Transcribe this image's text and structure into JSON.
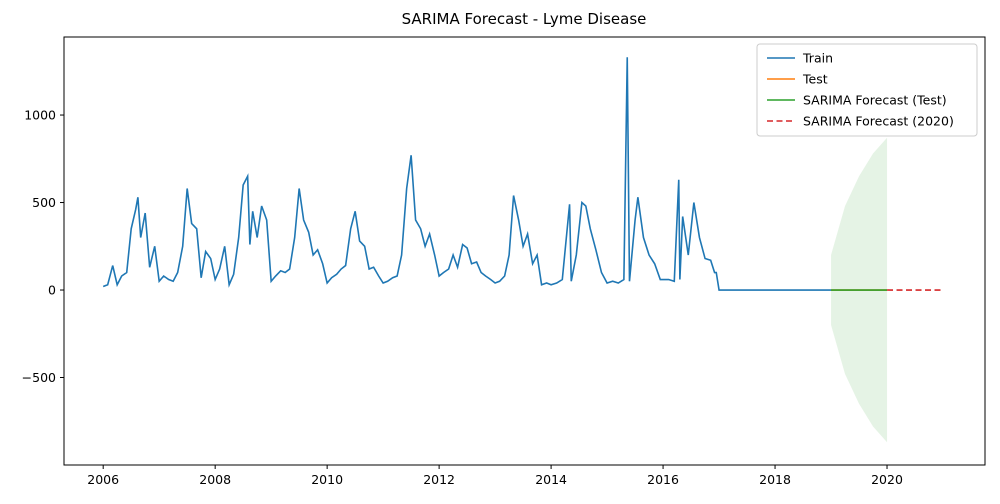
{
  "chart_data": {
    "type": "line",
    "title": "SARIMA Forecast - Lyme Disease",
    "xlim": [
      2005.3,
      2021.75
    ],
    "ylim": [
      -1000,
      1446
    ],
    "xticks": [
      2006,
      2008,
      2010,
      2012,
      2014,
      2016,
      2018,
      2020
    ],
    "yticks": [
      {
        "value": -500,
        "label": "−500"
      },
      0,
      500,
      1000
    ],
    "legend": "upper right",
    "series": [
      {
        "name": "Train",
        "color": "#1f77b4",
        "x": [
          2006.0,
          2006.08,
          2006.17,
          2006.25,
          2006.33,
          2006.42,
          2006.5,
          2006.58,
          2006.62,
          2006.67,
          2006.75,
          2006.83,
          2006.92,
          2007.0,
          2007.08,
          2007.17,
          2007.25,
          2007.33,
          2007.42,
          2007.5,
          2007.58,
          2007.67,
          2007.75,
          2007.83,
          2007.92,
          2008.0,
          2008.08,
          2008.17,
          2008.25,
          2008.33,
          2008.42,
          2008.5,
          2008.58,
          2008.62,
          2008.67,
          2008.75,
          2008.83,
          2008.92,
          2009.0,
          2009.08,
          2009.17,
          2009.25,
          2009.33,
          2009.42,
          2009.5,
          2009.58,
          2009.67,
          2009.75,
          2009.83,
          2009.92,
          2010.0,
          2010.08,
          2010.17,
          2010.25,
          2010.33,
          2010.42,
          2010.5,
          2010.58,
          2010.67,
          2010.75,
          2010.83,
          2010.92,
          2011.0,
          2011.08,
          2011.17,
          2011.25,
          2011.33,
          2011.42,
          2011.5,
          2011.58,
          2011.67,
          2011.75,
          2011.83,
          2011.92,
          2012.0,
          2012.08,
          2012.17,
          2012.25,
          2012.33,
          2012.42,
          2012.5,
          2012.58,
          2012.67,
          2012.75,
          2012.83,
          2012.92,
          2013.0,
          2013.08,
          2013.17,
          2013.25,
          2013.33,
          2013.42,
          2013.5,
          2013.58,
          2013.67,
          2013.75,
          2013.83,
          2013.92,
          2014.0,
          2014.1,
          2014.2,
          2014.33,
          2014.36,
          2014.45,
          2014.55,
          2014.62,
          2014.7,
          2014.8,
          2014.9,
          2015.0,
          2015.1,
          2015.2,
          2015.3,
          2015.36,
          2015.4,
          2015.5,
          2015.55,
          2015.65,
          2015.75,
          2015.85,
          2015.95,
          2016.0,
          2016.1,
          2016.2,
          2016.28,
          2016.3,
          2016.35,
          2016.45,
          2016.55,
          2016.65,
          2016.75,
          2016.85,
          2016.92,
          2016.95,
          2017.0,
          2019.0
        ],
        "values": [
          20,
          30,
          140,
          30,
          80,
          100,
          350,
          460,
          530,
          300,
          440,
          130,
          250,
          50,
          80,
          60,
          50,
          100,
          250,
          580,
          380,
          350,
          70,
          220,
          180,
          60,
          120,
          250,
          30,
          90,
          300,
          600,
          650,
          260,
          450,
          300,
          480,
          400,
          50,
          80,
          110,
          100,
          120,
          300,
          580,
          400,
          330,
          200,
          230,
          150,
          40,
          70,
          90,
          120,
          140,
          350,
          450,
          280,
          250,
          120,
          130,
          80,
          40,
          50,
          70,
          80,
          200,
          580,
          770,
          400,
          350,
          250,
          320,
          200,
          80,
          100,
          120,
          200,
          130,
          260,
          240,
          150,
          160,
          100,
          80,
          60,
          40,
          50,
          80,
          200,
          540,
          400,
          250,
          320,
          150,
          200,
          30,
          40,
          30,
          40,
          60,
          490,
          50,
          200,
          500,
          480,
          350,
          230,
          100,
          40,
          50,
          40,
          60,
          1330,
          50,
          400,
          530,
          300,
          200,
          150,
          60,
          60,
          60,
          50,
          630,
          60,
          420,
          200,
          500,
          300,
          180,
          170,
          100,
          100,
          0,
          0
        ]
      },
      {
        "name": "Test",
        "color": "#ff7f0e",
        "x": [
          2019,
          2020
        ],
        "values": [
          0,
          0
        ]
      },
      {
        "name": "SARIMA Forecast (Test)",
        "color": "#2ca02c",
        "x": [
          2019,
          2020
        ],
        "values": [
          0,
          0
        ]
      },
      {
        "name": "SARIMA Forecast (2020)",
        "color": "#d62728",
        "dash": true,
        "x": [
          2020,
          2021
        ],
        "values": [
          0,
          0
        ]
      }
    ],
    "band": {
      "color": "#2ca02c",
      "x": [
        2019,
        2019.25,
        2019.5,
        2019.75,
        2020
      ],
      "upper": [
        200,
        480,
        650,
        780,
        870
      ],
      "lower": [
        -200,
        -480,
        -650,
        -780,
        -870
      ]
    }
  }
}
